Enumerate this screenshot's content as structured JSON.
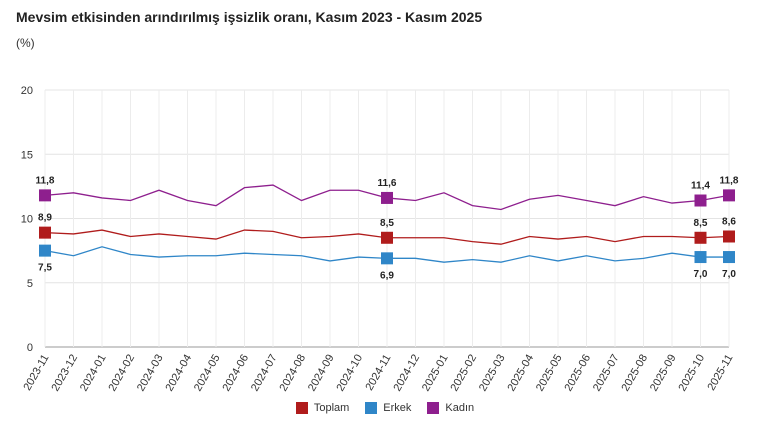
{
  "title": "Mevsim etkisinden arındırılmış işsizlik oranı, Kasım 2023 - Kasım 2025",
  "unit": "(%)",
  "chart_data": {
    "type": "line",
    "title": "Mevsim etkisinden arındırılmış işsizlik oranı, Kasım 2023 - Kasım 2025",
    "ylabel": "(%)",
    "ylim": [
      0,
      20
    ],
    "yticks": [
      "0",
      "5",
      "10",
      "15",
      "20"
    ],
    "grid": true,
    "legend": "bottom",
    "x": [
      "2023-11",
      "2023-12",
      "2024-01",
      "2024-02",
      "2024-03",
      "2024-04",
      "2024-05",
      "2024-06",
      "2024-07",
      "2024-08",
      "2024-09",
      "2024-10",
      "2024-11",
      "2024-12",
      "2025-01",
      "2025-02",
      "2025-03",
      "2025-04",
      "2025-05",
      "2025-06",
      "2025-07",
      "2025-08",
      "2025-09",
      "2025-10",
      "2025-11"
    ],
    "series": [
      {
        "name": "Toplam",
        "color": "#b01c1c",
        "values": [
          8.9,
          8.8,
          9.1,
          8.6,
          8.8,
          8.6,
          8.4,
          9.1,
          9.0,
          8.5,
          8.6,
          8.8,
          8.5,
          8.5,
          8.5,
          8.2,
          8.0,
          8.6,
          8.4,
          8.6,
          8.2,
          8.6,
          8.6,
          8.5,
          8.6
        ],
        "labels": {
          "0": "8,9",
          "12": "8,5",
          "23": "8,5",
          "24": "8,6"
        }
      },
      {
        "name": "Erkek",
        "color": "#2f86c8",
        "values": [
          7.5,
          7.1,
          7.8,
          7.2,
          7.0,
          7.1,
          7.1,
          7.3,
          7.2,
          7.1,
          6.7,
          7.0,
          6.9,
          6.9,
          6.6,
          6.8,
          6.6,
          7.1,
          6.7,
          7.1,
          6.7,
          6.9,
          7.3,
          7.0,
          7.0
        ],
        "labels": {
          "0": "7,5",
          "12": "6,9",
          "23": "7,0",
          "24": "7,0"
        }
      },
      {
        "name": "Kadın",
        "color": "#8e1f8e",
        "values": [
          11.8,
          12.0,
          11.6,
          11.4,
          12.2,
          11.4,
          11.0,
          12.4,
          12.6,
          11.4,
          12.2,
          12.2,
          11.6,
          11.4,
          12.0,
          11.0,
          10.7,
          11.5,
          11.8,
          11.4,
          11.0,
          11.7,
          11.2,
          11.4,
          11.8
        ],
        "labels": {
          "0": "11,8",
          "12": "11,6",
          "23": "11,4",
          "24": "11,8"
        }
      }
    ]
  }
}
